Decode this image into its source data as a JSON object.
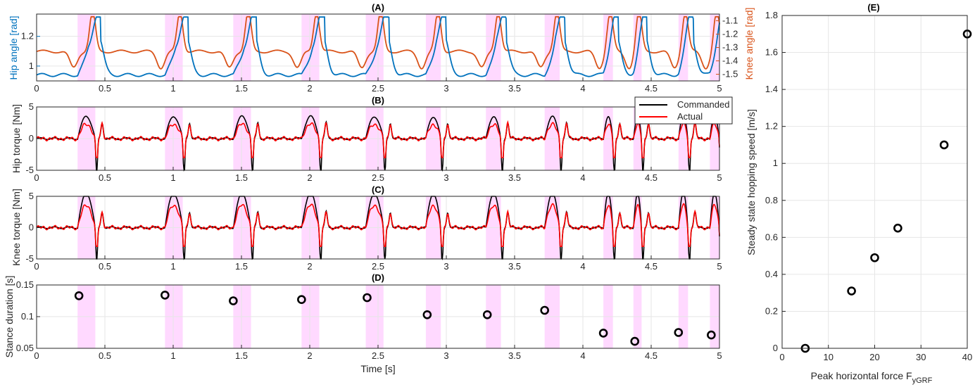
{
  "chart_data": [
    {
      "id": "A",
      "type": "line",
      "title": "(A)",
      "xlabel": "",
      "xlim": [
        0,
        5
      ],
      "x_ticks": [
        "0",
        "0.5",
        "1",
        "1.5",
        "2",
        "2.5",
        "3",
        "3.5",
        "4",
        "4.5",
        "5"
      ],
      "ylabel_left": "Hip angle [rad]",
      "ylim_left": [
        0.9,
        1.35
      ],
      "y_ticks_left": [
        "1",
        "1.2"
      ],
      "ylabel_right": "Knee angle [rad]",
      "ylim_right": [
        -1.55,
        -1.05
      ],
      "y_ticks_right": [
        "-1.1",
        "-1.2",
        "-1.3",
        "-1.4",
        "-1.5"
      ],
      "series": [
        {
          "name": "Hip angle",
          "color": "#0072bd",
          "axis": "left"
        },
        {
          "name": "Knee angle",
          "color": "#d95319",
          "axis": "right"
        }
      ]
    },
    {
      "id": "B",
      "type": "line",
      "title": "(B)",
      "xlim": [
        0,
        5
      ],
      "x_ticks": [
        "0",
        "0.5",
        "1",
        "1.5",
        "2",
        "2.5",
        "3",
        "3.5",
        "4",
        "4.5",
        "5"
      ],
      "ylabel": "Hip torque [Nm]",
      "ylim": [
        -5,
        5
      ],
      "y_ticks": [
        "5",
        "0",
        "-5"
      ],
      "series": [
        {
          "name": "Commanded",
          "color": "#000000"
        },
        {
          "name": "Actual",
          "color": "#ff0000"
        }
      ],
      "legend": {
        "position": "top-right",
        "entries": [
          "Commanded",
          "Actual"
        ]
      }
    },
    {
      "id": "C",
      "type": "line",
      "title": "(C)",
      "xlim": [
        0,
        5
      ],
      "x_ticks": [
        "0",
        "0.5",
        "1",
        "1.5",
        "2",
        "2.5",
        "3",
        "3.5",
        "4",
        "4.5",
        "5"
      ],
      "ylabel": "Knee torque [Nm]",
      "ylim": [
        -5,
        5
      ],
      "y_ticks": [
        "5",
        "0",
        "-5"
      ],
      "series": [
        {
          "name": "Commanded",
          "color": "#000000"
        },
        {
          "name": "Actual",
          "color": "#ff0000"
        }
      ]
    },
    {
      "id": "D",
      "type": "scatter",
      "title": "(D)",
      "xlabel": "Time [s]",
      "xlim": [
        0,
        5
      ],
      "x_ticks": [
        "0",
        "0.5",
        "1",
        "1.5",
        "2",
        "2.5",
        "3",
        "3.5",
        "4",
        "4.5",
        "5"
      ],
      "ylabel": "Stance duration [s]",
      "ylim": [
        0.05,
        0.15
      ],
      "y_ticks": [
        "0.15",
        "0.1",
        "0.05"
      ],
      "x": [
        0.31,
        0.94,
        1.44,
        1.94,
        2.42,
        2.86,
        3.3,
        3.72,
        4.15,
        4.38,
        4.7,
        4.94
      ],
      "y": [
        0.133,
        0.134,
        0.125,
        0.127,
        0.13,
        0.103,
        0.103,
        0.11,
        0.074,
        0.061,
        0.075,
        0.071
      ]
    },
    {
      "id": "E",
      "type": "scatter",
      "title": "(E)",
      "xlabel": "Peak horizontal force F",
      "xlabel_sub": "yGRF",
      "ylabel": "Steady state hopping speed [m/s]",
      "xlim": [
        0,
        40
      ],
      "ylim": [
        0,
        1.8
      ],
      "x_ticks": [
        "0",
        "10",
        "20",
        "30",
        "40"
      ],
      "y_ticks": [
        "0",
        "0.2",
        "0.4",
        "0.6",
        "0.8",
        "1",
        "1.2",
        "1.4",
        "1.6",
        "1.8"
      ],
      "x": [
        5,
        15,
        20,
        25,
        35,
        40
      ],
      "y": [
        0.0,
        0.31,
        0.49,
        0.65,
        1.1,
        1.7
      ]
    }
  ],
  "stance_intervals": [
    [
      0.3,
      0.43
    ],
    [
      0.94,
      1.07
    ],
    [
      1.44,
      1.57
    ],
    [
      1.94,
      2.07
    ],
    [
      2.41,
      2.54
    ],
    [
      2.85,
      2.96
    ],
    [
      3.29,
      3.4
    ],
    [
      3.72,
      3.83
    ],
    [
      4.15,
      4.22
    ],
    [
      4.37,
      4.43
    ],
    [
      4.7,
      4.77
    ],
    [
      4.93,
      5.0
    ]
  ]
}
